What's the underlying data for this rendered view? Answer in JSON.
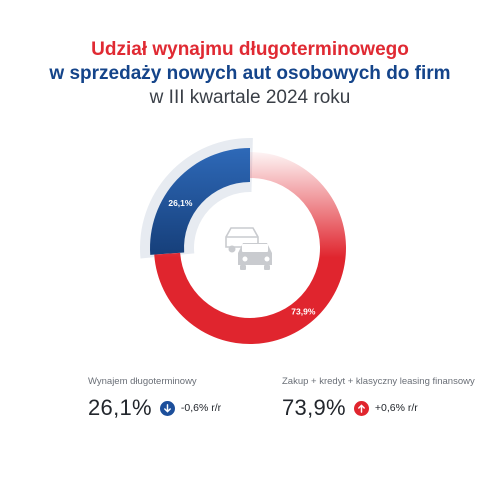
{
  "title": {
    "line1": "Udział wynajmu długoterminowego",
    "line2": "w sprzedaży nowych aut osobowych do firm",
    "line3": "w III kwartale 2024 roku"
  },
  "chart_data": {
    "type": "pie",
    "variant": "donut",
    "categories": [
      "Wynajem długoterminowy",
      "Zakup + kredyt + klasyczny leasing finansowy"
    ],
    "values": [
      26.1,
      73.9
    ],
    "labels": [
      "26,1%",
      "73,9%"
    ],
    "colors": [
      "#1a4e94",
      "#e0252e"
    ],
    "center_icon": "cars-icon"
  },
  "stats": [
    {
      "label": "Wynajem długoterminowy",
      "value": "26,1%",
      "change": "-0,6% r/r",
      "direction": "down",
      "icon": "arrow-down-icon",
      "color": "#1d4f9b"
    },
    {
      "label": "Zakup + kredyt + klasyczny leasing finansowy",
      "value": "73,9%",
      "change": "+0,6% r/r",
      "direction": "up",
      "icon": "arrow-up-icon",
      "color": "#e0252e"
    }
  ]
}
